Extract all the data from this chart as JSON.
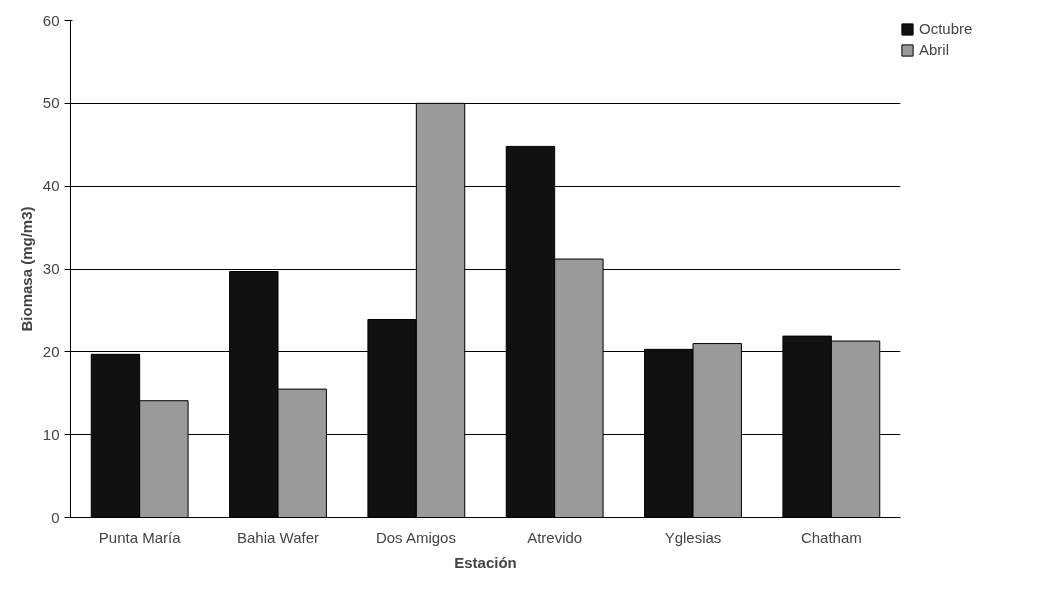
{
  "chart_data": {
    "type": "bar",
    "xlabel": "Estación",
    "ylabel": "Biomasa (mg/m3)",
    "categories": [
      "Punta María",
      "Bahia Wafer",
      "Dos Amigos",
      "Atrevido",
      "Yglesias",
      "Chatham"
    ],
    "series": [
      {
        "name": "Octubre",
        "color": "#111111",
        "values": [
          19.7,
          29.7,
          23.9,
          44.8,
          20.3,
          21.9
        ]
      },
      {
        "name": "Abril",
        "color": "#9a9a9a",
        "values": [
          14.1,
          15.5,
          50.0,
          31.2,
          21.0,
          21.3
        ]
      }
    ],
    "ylim": [
      0,
      60
    ],
    "yticks": [
      0,
      10,
      20,
      30,
      40,
      50,
      60
    ],
    "grid": "y",
    "legend": "top right"
  }
}
